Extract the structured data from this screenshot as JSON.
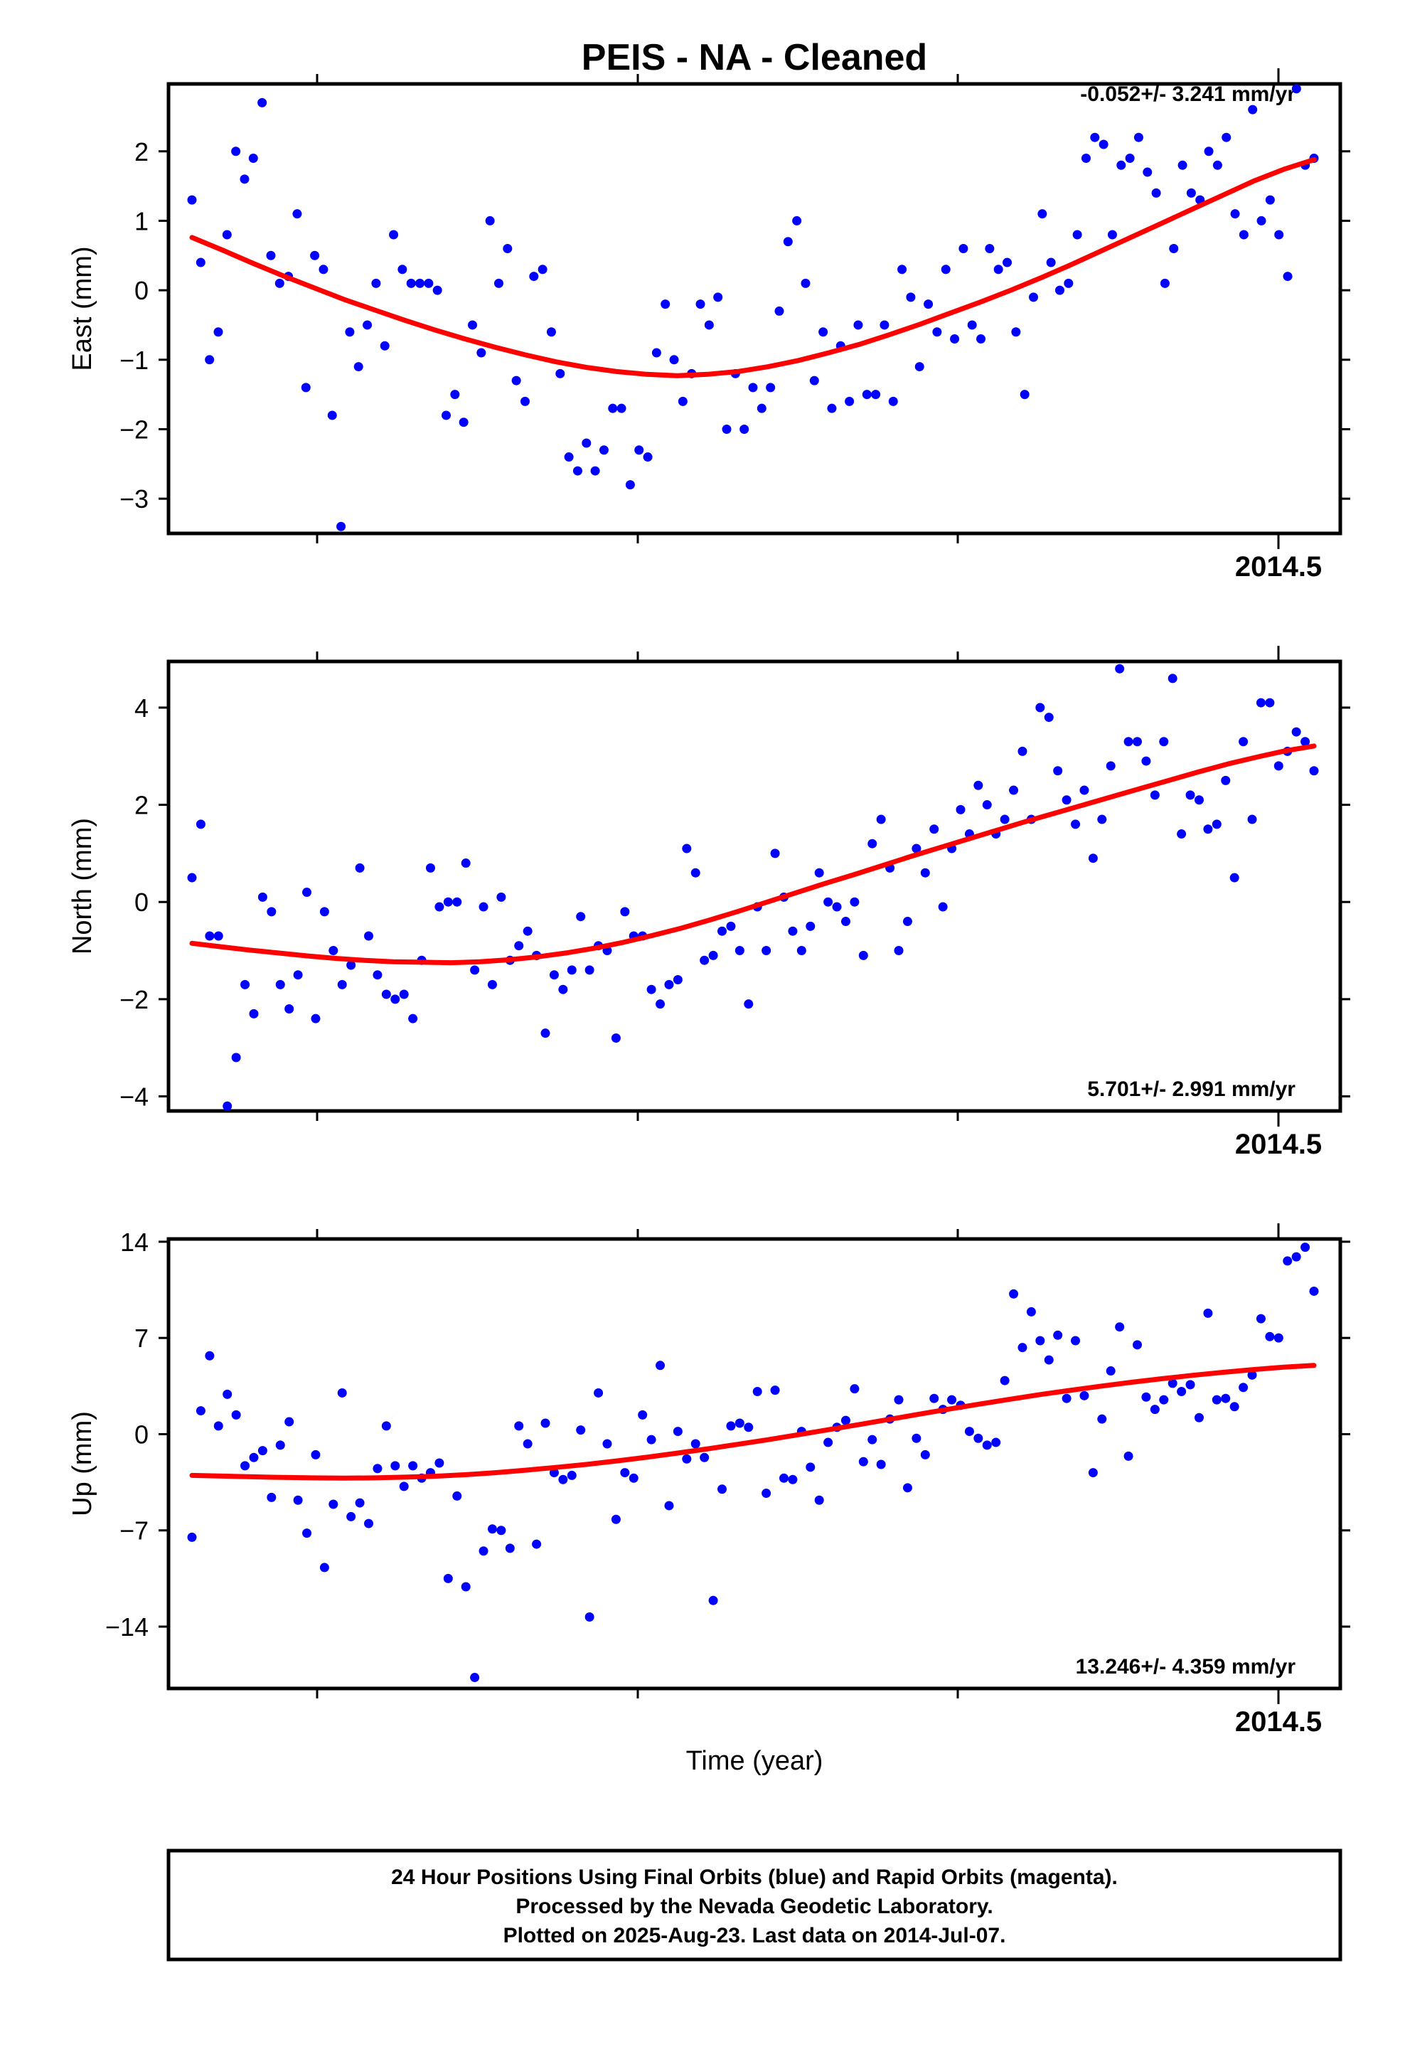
{
  "colors": {
    "points": "#0000ff",
    "fit": "#ff0000",
    "frame": "#000000"
  },
  "chart_data": [
    {
      "type": "scatter",
      "title": "PEIS  - NA - Cleaned",
      "ylabel": "East (mm)",
      "xlabel": "",
      "x_tick_labels": [
        "2014.5"
      ],
      "y_ticks": [
        -3,
        -2,
        -1,
        0,
        1,
        2
      ],
      "ylim": [
        -3.5,
        2.97
      ],
      "annotation": "-0.052+/- 3.241 mm/yr",
      "grid": false,
      "series": [
        {
          "kind": "points",
          "values": [
            1.3,
            0.4,
            -1.0,
            -0.6,
            0.8,
            2.0,
            1.6,
            1.9,
            2.7,
            0.5,
            0.1,
            0.2,
            1.1,
            -1.4,
            0.5,
            0.3,
            -1.8,
            -3.4,
            -0.6,
            -1.1,
            -0.5,
            0.1,
            -0.8,
            0.8,
            0.3,
            0.1,
            0.1,
            0.1,
            0.0,
            -1.8,
            -1.5,
            -1.9,
            -0.5,
            -0.9,
            1.0,
            0.1,
            0.6,
            -1.3,
            -1.6,
            0.2,
            0.3,
            -0.6,
            -1.2,
            -2.4,
            -2.6,
            -2.2,
            -2.6,
            -2.3,
            -1.7,
            -1.7,
            -2.8,
            -2.3,
            -2.4,
            -0.9,
            -0.2,
            -1.0,
            -1.6,
            -1.2,
            -0.2,
            -0.5,
            -0.1,
            -2.0,
            -1.2,
            -2.0,
            -1.4,
            -1.7,
            -1.4,
            -0.3,
            0.7,
            1.0,
            0.1,
            -1.3,
            -0.6,
            -1.7,
            -0.8,
            -1.6,
            -0.5,
            -1.5,
            -1.5,
            -0.5,
            -1.6,
            0.3,
            -0.1,
            -1.1,
            -0.2,
            -0.6,
            0.3,
            -0.7,
            0.6,
            -0.5,
            -0.7,
            0.6,
            0.3,
            0.4,
            -0.6,
            -1.5,
            -0.1,
            1.1,
            0.4,
            0.0,
            0.1,
            0.8,
            1.9,
            2.2,
            2.1,
            0.8,
            1.8,
            1.9,
            2.2,
            1.7,
            1.4,
            0.1,
            0.6,
            1.8,
            1.4,
            1.3,
            2.0,
            1.8,
            2.2,
            1.1,
            0.8,
            2.6,
            1.0,
            1.3,
            0.8,
            0.2,
            2.9,
            1.8,
            1.9
          ]
        },
        {
          "kind": "fit",
          "values": [
            0.76,
            0.58,
            0.39,
            0.21,
            0.04,
            -0.13,
            -0.28,
            -0.43,
            -0.57,
            -0.7,
            -0.82,
            -0.93,
            -1.03,
            -1.11,
            -1.17,
            -1.21,
            -1.23,
            -1.21,
            -1.17,
            -1.1,
            -1.01,
            -0.9,
            -0.78,
            -0.64,
            -0.49,
            -0.33,
            -0.17,
            0.0,
            0.18,
            0.37,
            0.57,
            0.77,
            0.97,
            1.17,
            1.37,
            1.57,
            1.74,
            1.88
          ]
        }
      ]
    },
    {
      "type": "scatter",
      "title": "",
      "ylabel": "North (mm)",
      "xlabel": "",
      "x_tick_labels": [
        "2014.5"
      ],
      "y_ticks": [
        -4,
        -2,
        0,
        2,
        4
      ],
      "ylim": [
        -4.3,
        4.95
      ],
      "annotation": "5.701+/- 2.991 mm/yr",
      "grid": false,
      "series": [
        {
          "kind": "points",
          "values": [
            0.5,
            1.6,
            -0.7,
            -0.7,
            -4.2,
            -3.2,
            -1.7,
            -2.3,
            0.1,
            -0.2,
            -1.7,
            -2.2,
            -1.5,
            0.2,
            -2.4,
            -0.2,
            -1.0,
            -1.7,
            -1.3,
            0.7,
            -0.7,
            -1.5,
            -1.9,
            -2.0,
            -1.9,
            -2.4,
            -1.2,
            0.7,
            -0.1,
            0.0,
            0.0,
            0.8,
            -1.4,
            -0.1,
            -1.7,
            0.1,
            -1.2,
            -0.9,
            -0.6,
            -1.1,
            -2.7,
            -1.5,
            -1.8,
            -1.4,
            -0.3,
            -1.4,
            -0.9,
            -1.0,
            -2.8,
            -0.2,
            -0.7,
            -0.7,
            -1.8,
            -2.1,
            -1.7,
            -1.6,
            1.1,
            0.6,
            -1.2,
            -1.1,
            -0.6,
            -0.5,
            -1.0,
            -2.1,
            -0.1,
            -1.0,
            1.0,
            0.1,
            -0.6,
            -1.0,
            -0.5,
            0.6,
            0.0,
            -0.1,
            -0.4,
            0.0,
            -1.1,
            1.2,
            1.7,
            0.7,
            -1.0,
            -0.4,
            1.1,
            0.6,
            1.5,
            -0.1,
            1.1,
            1.9,
            1.4,
            2.4,
            2.0,
            1.4,
            1.7,
            2.3,
            3.1,
            1.7,
            4.0,
            3.8,
            2.7,
            2.1,
            1.6,
            2.3,
            0.9,
            1.7,
            2.8,
            4.8,
            3.3,
            3.3,
            2.9,
            2.2,
            3.3,
            4.6,
            1.4,
            2.2,
            2.1,
            1.5,
            1.6,
            2.5,
            0.5,
            3.3,
            1.7,
            4.1,
            4.1,
            2.8,
            3.1,
            3.5,
            3.3,
            2.7
          ]
        },
        {
          "kind": "fit",
          "values": [
            -0.85,
            -0.92,
            -0.99,
            -1.05,
            -1.11,
            -1.16,
            -1.2,
            -1.23,
            -1.24,
            -1.25,
            -1.23,
            -1.19,
            -1.13,
            -1.05,
            -0.95,
            -0.83,
            -0.69,
            -0.54,
            -0.37,
            -0.19,
            0.0,
            0.19,
            0.38,
            0.56,
            0.75,
            0.94,
            1.12,
            1.3,
            1.48,
            1.66,
            1.83,
            2.0,
            2.17,
            2.34,
            2.51,
            2.68,
            2.84,
            2.98,
            3.11,
            3.21
          ]
        }
      ]
    },
    {
      "type": "scatter",
      "title": "",
      "ylabel": "Up (mm)",
      "xlabel": "Time (year)",
      "x_tick_labels": [
        "2014.5"
      ],
      "y_ticks": [
        -14,
        -7,
        0,
        7,
        14
      ],
      "ylim": [
        -18.5,
        14.2
      ],
      "annotation": "13.246+/- 4.359 mm/yr",
      "grid": false,
      "series": [
        {
          "kind": "points",
          "values": [
            -7.5,
            1.7,
            5.7,
            0.6,
            2.9,
            1.4,
            -2.3,
            -1.7,
            -1.2,
            -4.6,
            -0.8,
            0.9,
            -4.8,
            -7.2,
            -1.5,
            -9.7,
            -5.1,
            3.0,
            -6.0,
            -5.0,
            -6.5,
            -2.5,
            0.6,
            -2.3,
            -3.8,
            -2.3,
            -3.2,
            -2.8,
            -2.1,
            -10.5,
            -4.5,
            -11.1,
            -17.7,
            -8.5,
            -6.9,
            -7.0,
            -8.3,
            0.6,
            -0.7,
            -8.0,
            0.8,
            -2.8,
            -3.3,
            -3.0,
            0.3,
            -13.3,
            3.0,
            -0.7,
            -6.2,
            -2.8,
            -3.2,
            1.4,
            -0.4,
            5.0,
            -5.2,
            0.2,
            -1.8,
            -0.7,
            -1.7,
            -12.1,
            -4.0,
            0.6,
            0.8,
            0.5,
            3.1,
            -4.3,
            3.2,
            -3.2,
            -3.3,
            0.2,
            -2.4,
            -4.8,
            -0.6,
            0.5,
            1.0,
            3.3,
            -2.0,
            -0.4,
            -2.2,
            1.1,
            2.5,
            -3.9,
            -0.3,
            -1.5,
            2.6,
            1.8,
            2.5,
            2.1,
            0.2,
            -0.3,
            -0.8,
            -0.6,
            3.9,
            10.2,
            6.3,
            8.9,
            6.8,
            5.4,
            7.2,
            2.6,
            6.8,
            2.8,
            -2.8,
            1.1,
            4.6,
            7.8,
            -1.6,
            6.5,
            2.7,
            1.8,
            2.5,
            3.7,
            3.1,
            3.6,
            1.2,
            8.8,
            2.5,
            2.6,
            2.0,
            3.4,
            4.3,
            8.4,
            7.1,
            7.0,
            12.6,
            12.9,
            13.6,
            10.4
          ]
        },
        {
          "kind": "fit",
          "values": [
            -3.0,
            -3.05,
            -3.1,
            -3.15,
            -3.18,
            -3.2,
            -3.18,
            -3.13,
            -3.06,
            -2.95,
            -2.8,
            -2.62,
            -2.42,
            -2.2,
            -1.95,
            -1.68,
            -1.38,
            -1.07,
            -0.74,
            -0.4,
            -0.04,
            0.33,
            0.7,
            1.08,
            1.46,
            1.84,
            2.2,
            2.55,
            2.89,
            3.2,
            3.5,
            3.78,
            4.04,
            4.28,
            4.5,
            4.7,
            4.87,
            5.0
          ]
        }
      ]
    }
  ],
  "footer": {
    "lines": [
      "24 Hour Positions Using Final Orbits (blue) and Rapid Orbits (magenta).",
      "Processed by the Nevada Geodetic Laboratory.",
      "Plotted on 2025-Aug-23. Last data on 2014-Jul-07."
    ]
  }
}
